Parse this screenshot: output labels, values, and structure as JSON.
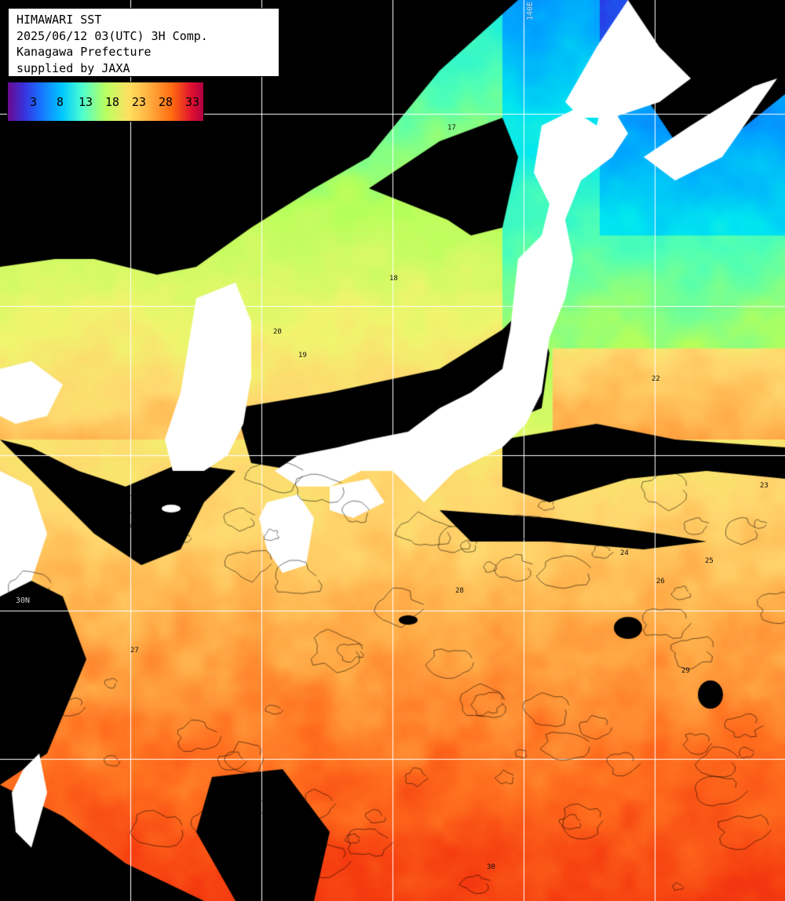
{
  "header": {
    "line1": "HIMAWARI SST",
    "line2": "2025/06/12 03(UTC) 3H Comp.",
    "line3": "Kanagawa Prefecture",
    "line4": "supplied by JAXA"
  },
  "legend": {
    "labels": [
      "3",
      "8",
      "13",
      "18",
      "23",
      "28",
      "33"
    ],
    "unit_hint": "sea surface temperature color scale"
  },
  "grid": {
    "labels": [
      "140E",
      "30N"
    ]
  },
  "contour_labels": [
    "17",
    "18",
    "19",
    "20",
    "22",
    "23",
    "24",
    "25",
    "26",
    "27",
    "28",
    "29",
    "30"
  ],
  "colors": {
    "cloud": "#000000",
    "land": "#ffffff",
    "grid": "#ffffff"
  }
}
